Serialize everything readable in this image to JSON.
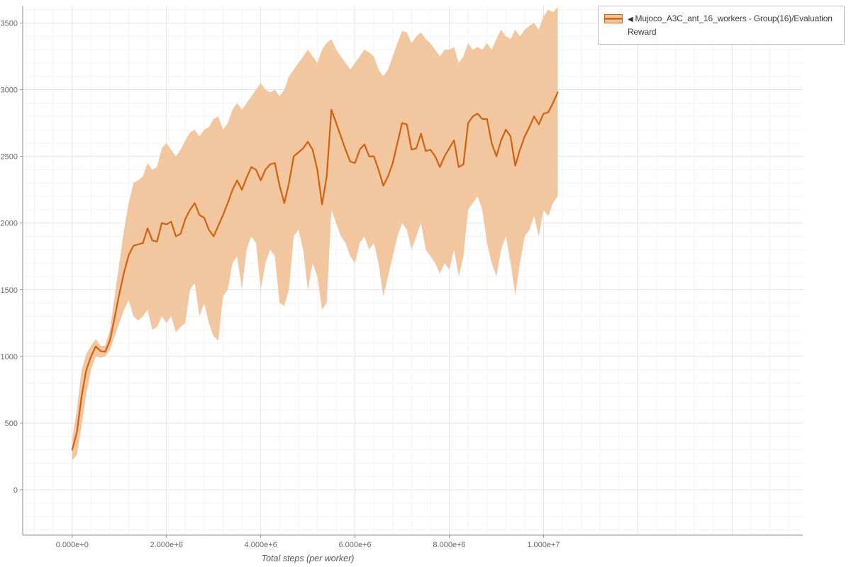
{
  "legend": {
    "arrow": "◀",
    "label_line1": "Mujoco_A3C_ant_16_workers - Group(16)/Evaluation",
    "label_line2": "Reward"
  },
  "chart_data": {
    "type": "line",
    "title": "",
    "xlabel": "Total steps (per worker)",
    "ylabel": "",
    "grid": true,
    "legend_position": "top-right",
    "xlim": [
      -1050000,
      15500000
    ],
    "ylim": [
      -340,
      3630
    ],
    "x_tick_values": [
      0,
      2000000,
      4000000,
      6000000,
      8000000,
      10000000
    ],
    "x_tick_labels": [
      "0.000e+0",
      "2.000e+6",
      "4.000e+6",
      "6.000e+6",
      "8.000e+6",
      "1.000e+7"
    ],
    "y_tick_values": [
      0,
      500,
      1000,
      1500,
      2000,
      2500,
      3000,
      3500
    ],
    "y_tick_labels": [
      "0",
      "500",
      "1000",
      "1500",
      "2000",
      "2500",
      "3000",
      "3500"
    ],
    "series": [
      {
        "name": "Mujoco_A3C_ant_16_workers - Group(16)/Evaluation Reward",
        "color": "#d2610e",
        "band_color": "#f2c7a0",
        "x": [
          0,
          100000.0,
          200000.0,
          300000.0,
          400000.0,
          500000.0,
          600000.0,
          700000.0,
          800000.0,
          900000.0,
          1000000.0,
          1100000.0,
          1200000.0,
          1300000.0,
          1400000.0,
          1500000.0,
          1600000.0,
          1700000.0,
          1800000.0,
          1900000.0,
          2000000.0,
          2100000.0,
          2200000.0,
          2300000.0,
          2400000.0,
          2500000.0,
          2600000.0,
          2700000.0,
          2800000.0,
          2900000.0,
          3000000.0,
          3100000.0,
          3200000.0,
          3300000.0,
          3400000.0,
          3500000.0,
          3600000.0,
          3700000.0,
          3800000.0,
          3900000.0,
          4000000.0,
          4100000.0,
          4200000.0,
          4300000.0,
          4400000.0,
          4500000.0,
          4600000.0,
          4700000.0,
          4800000.0,
          4900000.0,
          5000000.0,
          5100000.0,
          5200000.0,
          5300000.0,
          5400000.0,
          5500000.0,
          5600000.0,
          5700000.0,
          5800000.0,
          5900000.0,
          6000000.0,
          6100000.0,
          6200000.0,
          6300000.0,
          6400000.0,
          6500000.0,
          6600000.0,
          6700000.0,
          6800000.0,
          6900000.0,
          7000000.0,
          7100000.0,
          7200000.0,
          7300000.0,
          7400000.0,
          7500000.0,
          7600000.0,
          7700000.0,
          7800000.0,
          7900000.0,
          8000000.0,
          8100000.0,
          8200000.0,
          8300000.0,
          8400000.0,
          8500000.0,
          8600000.0,
          8700000.0,
          8800000.0,
          8900000.0,
          9000000.0,
          9100000.0,
          9200000.0,
          9300000.0,
          9400000.0,
          9500000.0,
          9600000.0,
          9700000.0,
          9800000.0,
          9900000.0,
          10000000.0,
          10100000.0,
          10200000.0,
          10300000.0
        ],
        "mean": [
          300,
          430,
          700,
          900,
          1000,
          1075,
          1040,
          1035,
          1120,
          1290,
          1470,
          1630,
          1760,
          1830,
          1840,
          1850,
          1960,
          1870,
          1860,
          2000,
          1990,
          2010,
          1900,
          1920,
          2030,
          2100,
          2150,
          2060,
          2040,
          1950,
          1900,
          1980,
          2060,
          2150,
          2250,
          2320,
          2250,
          2340,
          2420,
          2400,
          2320,
          2400,
          2440,
          2450,
          2280,
          2150,
          2300,
          2500,
          2530,
          2560,
          2610,
          2550,
          2400,
          2140,
          2350,
          2850,
          2750,
          2650,
          2550,
          2460,
          2450,
          2550,
          2590,
          2500,
          2500,
          2400,
          2280,
          2350,
          2450,
          2600,
          2750,
          2740,
          2550,
          2560,
          2670,
          2540,
          2550,
          2500,
          2420,
          2500,
          2560,
          2620,
          2420,
          2440,
          2750,
          2800,
          2820,
          2780,
          2780,
          2600,
          2500,
          2620,
          2700,
          2650,
          2430,
          2550,
          2650,
          2720,
          2800,
          2740,
          2820,
          2830,
          2900,
          2980
        ],
        "band_lower": [
          220,
          260,
          480,
          720,
          900,
          1000,
          990,
          1000,
          1050,
          1150,
          1250,
          1350,
          1420,
          1300,
          1270,
          1300,
          1350,
          1200,
          1220,
          1300,
          1250,
          1300,
          1180,
          1220,
          1250,
          1500,
          1550,
          1300,
          1400,
          1250,
          1150,
          1120,
          1450,
          1500,
          1700,
          1750,
          1500,
          1800,
          1900,
          1850,
          1500,
          1700,
          1800,
          1750,
          1400,
          1380,
          1500,
          1900,
          1950,
          1800,
          1500,
          1700,
          1600,
          1350,
          1400,
          2100,
          2000,
          1900,
          1850,
          1750,
          1700,
          1850,
          1900,
          1800,
          1850,
          1700,
          1450,
          1600,
          1750,
          1900,
          2000,
          1950,
          1800,
          1900,
          2000,
          1800,
          1750,
          1700,
          1620,
          1700,
          1650,
          1800,
          1600,
          1750,
          2100,
          2150,
          2200,
          2100,
          1850,
          1700,
          1600,
          1800,
          1900,
          1700,
          1460,
          1700,
          1900,
          1950,
          2050,
          1900,
          2100,
          2050,
          2150,
          2200
        ],
        "band_upper": [
          380,
          600,
          900,
          1020,
          1080,
          1130,
          1080,
          1080,
          1200,
          1450,
          1700,
          1950,
          2150,
          2300,
          2320,
          2350,
          2450,
          2400,
          2420,
          2560,
          2600,
          2550,
          2500,
          2550,
          2620,
          2680,
          2700,
          2650,
          2700,
          2720,
          2780,
          2800,
          2700,
          2750,
          2850,
          2900,
          2850,
          2900,
          2950,
          3000,
          3050,
          3000,
          2980,
          3000,
          2950,
          3000,
          3100,
          3150,
          3200,
          3250,
          3300,
          3250,
          3200,
          3300,
          3350,
          3380,
          3300,
          3250,
          3200,
          3150,
          3200,
          3250,
          3300,
          3280,
          3250,
          3150,
          3100,
          3150,
          3250,
          3350,
          3440,
          3430,
          3350,
          3400,
          3430,
          3380,
          3350,
          3300,
          3250,
          3300,
          3300,
          3320,
          3200,
          3250,
          3350,
          3300,
          3320,
          3300,
          3350,
          3300,
          3380,
          3450,
          3400,
          3380,
          3450,
          3400,
          3450,
          3480,
          3500,
          3450,
          3550,
          3600,
          3580,
          3620
        ]
      }
    ]
  }
}
